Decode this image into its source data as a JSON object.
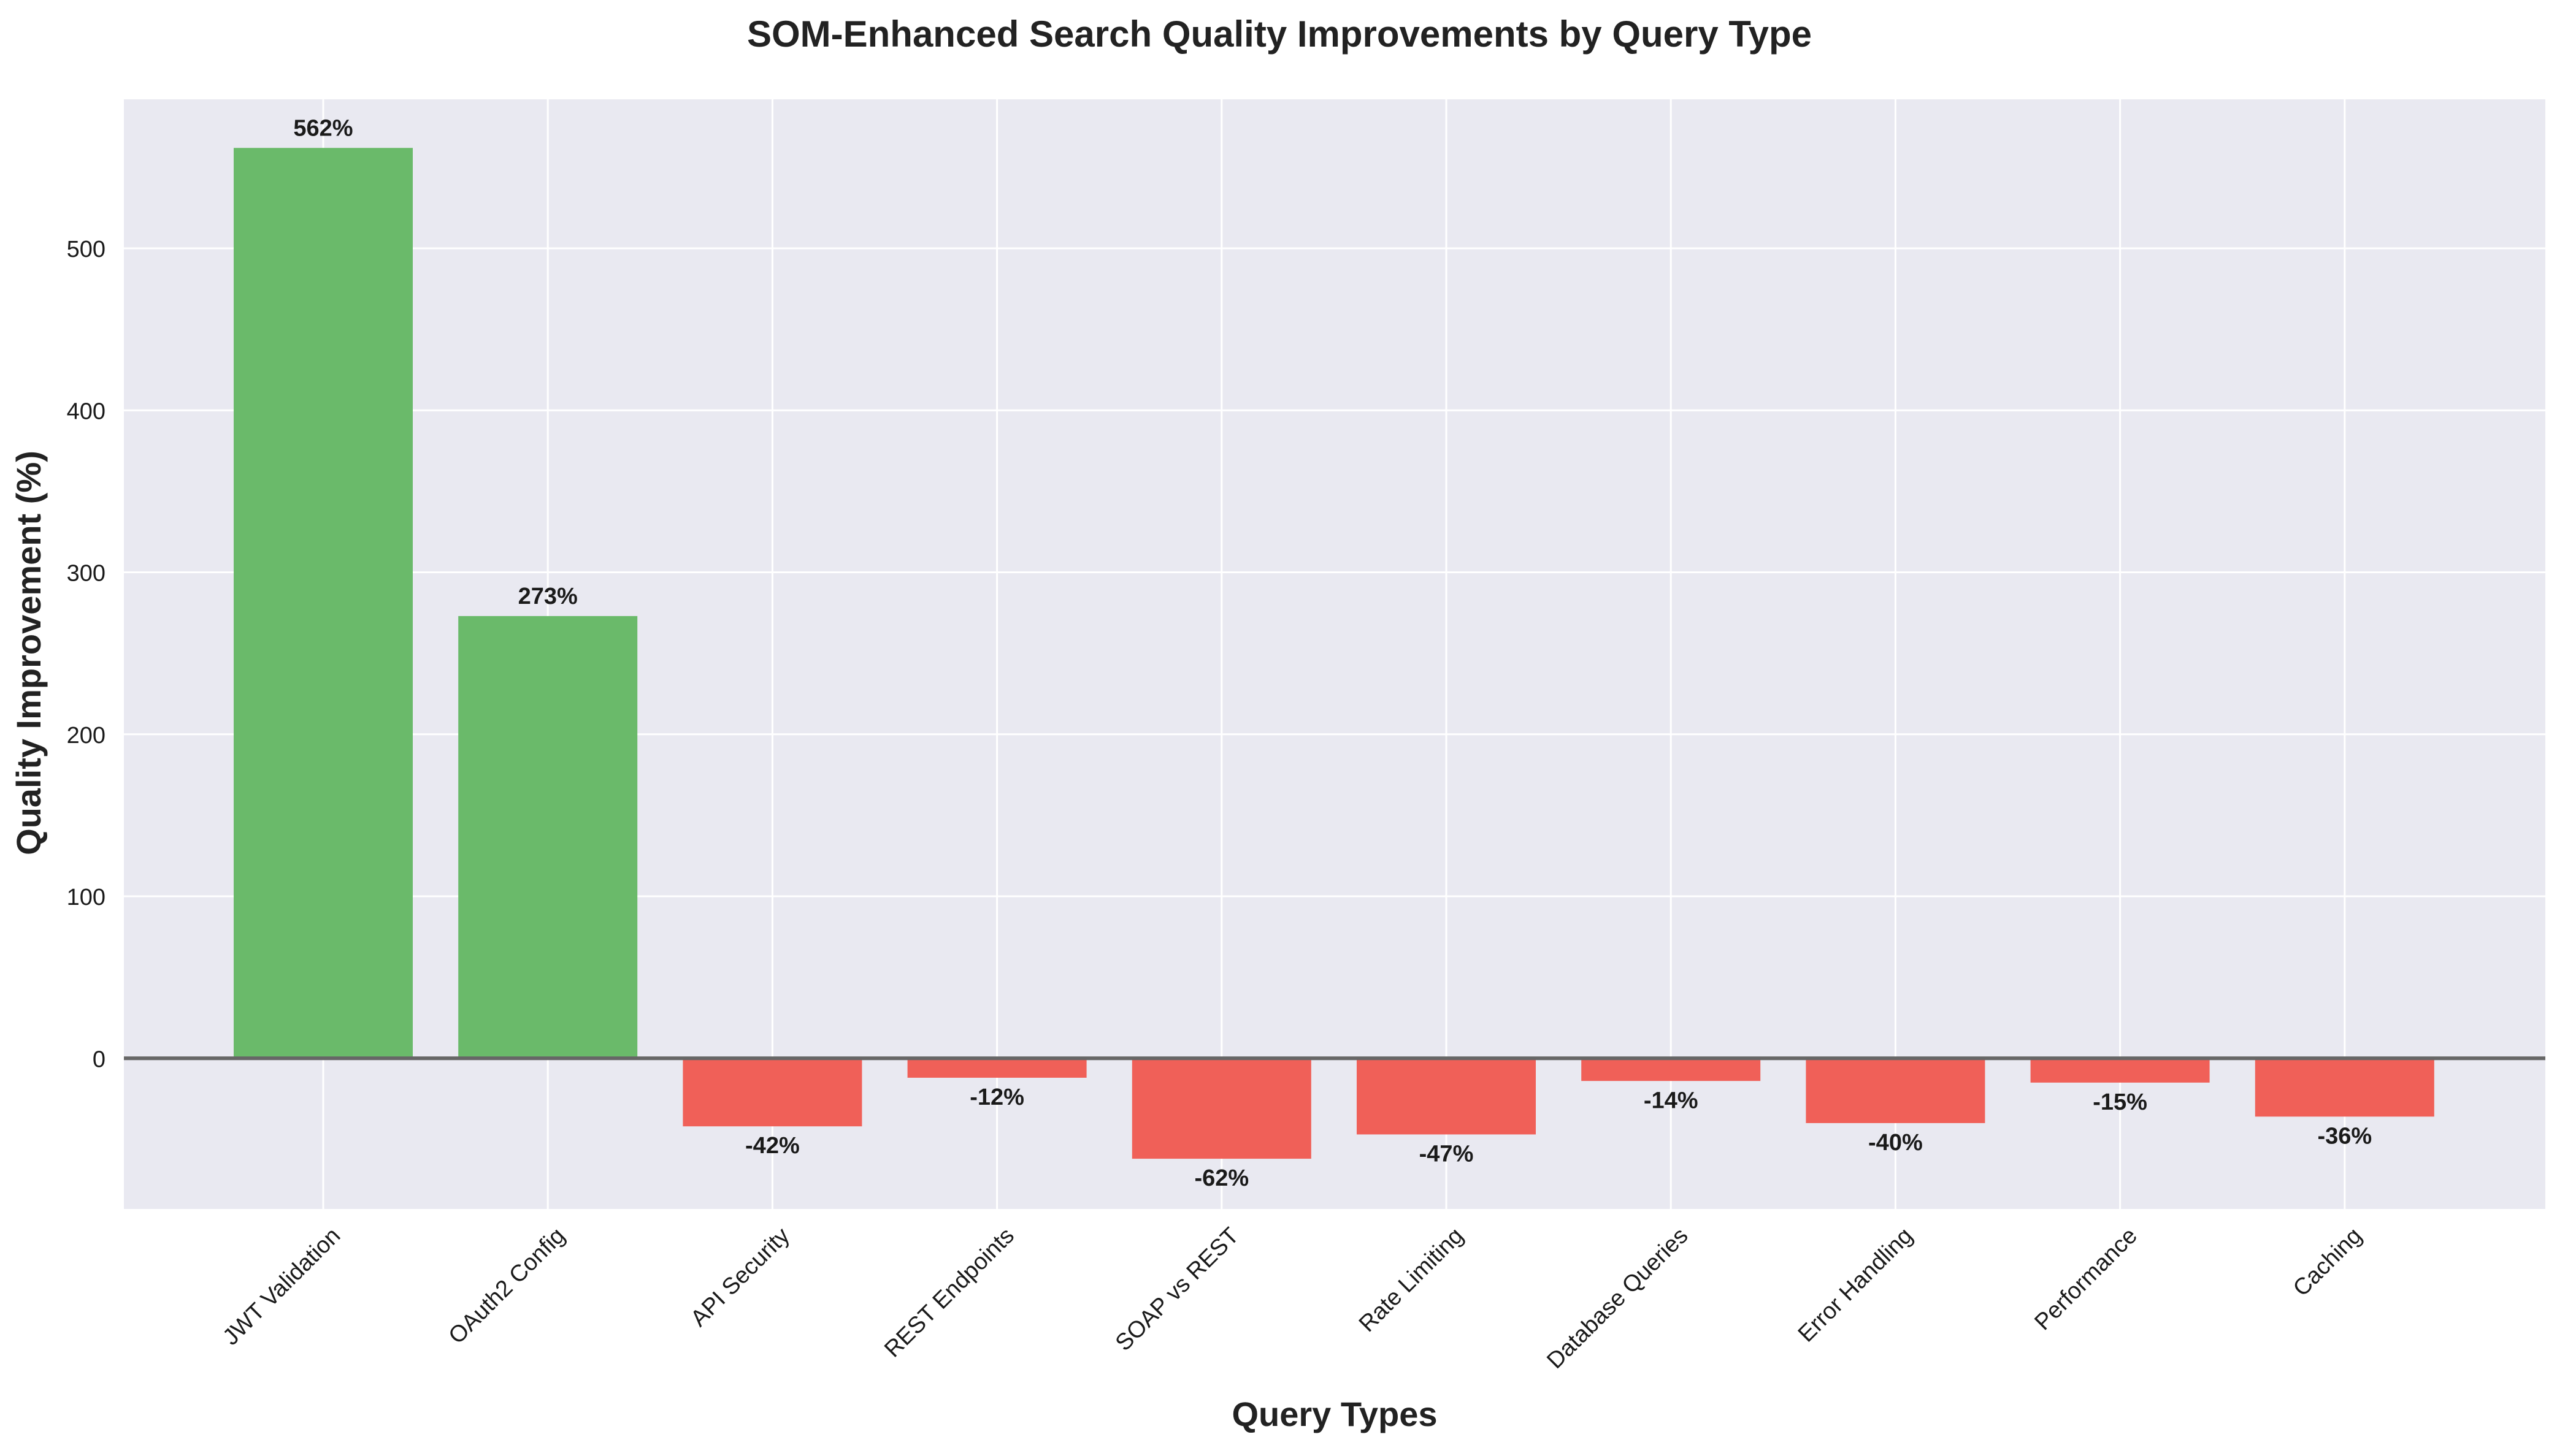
{
  "chart_data": {
    "type": "bar",
    "title": "SOM-Enhanced Search Quality Improvements by Query Type",
    "xlabel": "Query Types",
    "ylabel": "Quality Improvement (%)",
    "categories": [
      "JWT Validation",
      "OAuth2 Config",
      "API Security",
      "REST Endpoints",
      "SOAP vs REST",
      "Rate Limiting",
      "Database Queries",
      "Error Handling",
      "Performance",
      "Caching"
    ],
    "values": [
      562,
      273,
      -42,
      -12,
      -62,
      -47,
      -14,
      -40,
      -15,
      -36
    ],
    "data_labels": [
      "562%",
      "273%",
      "-42%",
      "-12%",
      "-62%",
      "-47%",
      "-14%",
      "-40%",
      "-15%",
      "-36%"
    ],
    "ylim": [
      -93,
      592
    ],
    "yticks": [
      0,
      100,
      200,
      300,
      400,
      500
    ],
    "grid": true,
    "zero_line": true,
    "colors": {
      "positive": "#6aba6a",
      "negative": "#f06058",
      "plot_background": "#e9e9f1",
      "grid": "#ffffff",
      "zero_line": "#666666",
      "text": "#1a1a1a"
    }
  }
}
